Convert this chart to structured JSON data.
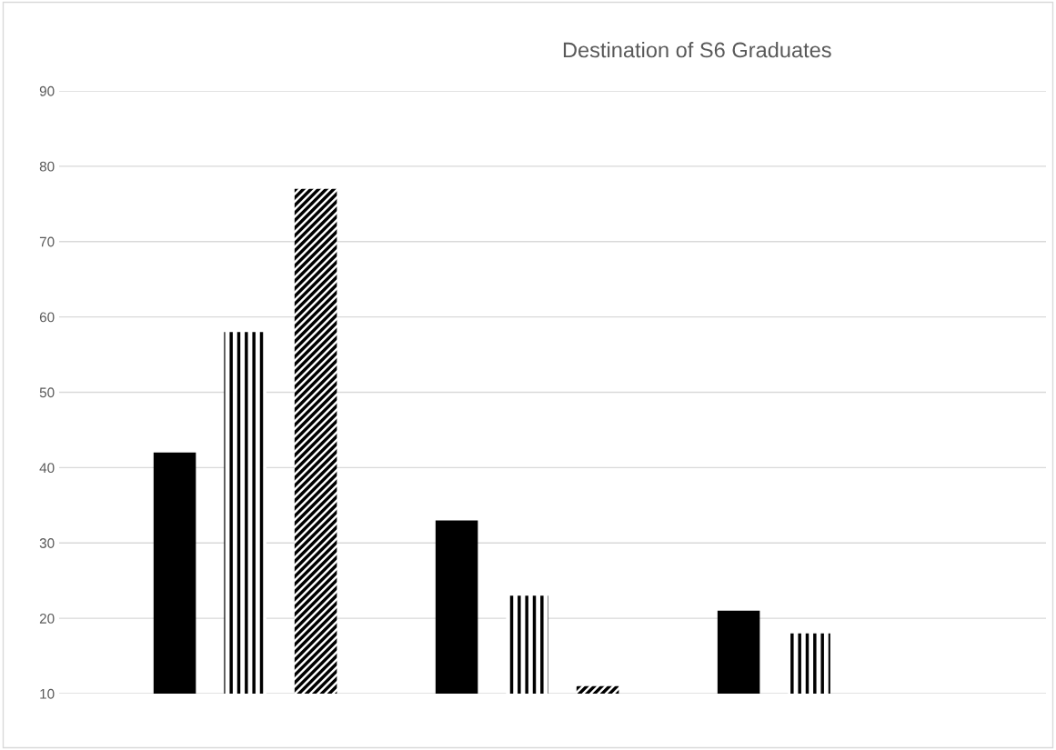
{
  "chart_data": {
    "type": "bar",
    "title": "Destination of S6 Graduates",
    "categories": [
      null,
      null,
      null
    ],
    "series": [
      {
        "color": "#000000",
        "values": [
          42,
          33,
          21
        ]
      },
      {
        "color": "#000000",
        "values": [
          58,
          23,
          18
        ]
      },
      {
        "color": "#000000",
        "values": [
          77,
          11,
          null
        ]
      }
    ],
    "ylim": [
      10,
      90
    ],
    "yticks": [
      10,
      20,
      30,
      40,
      50,
      60,
      70,
      80,
      90
    ],
    "grid": "y",
    "legend": false
  }
}
